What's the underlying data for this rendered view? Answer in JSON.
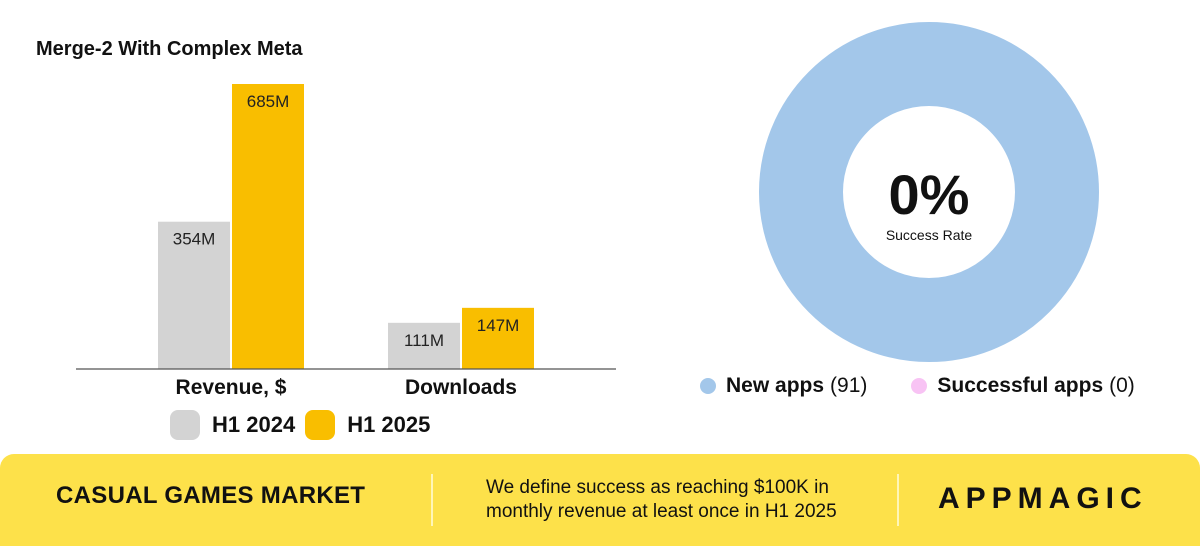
{
  "chart_data": [
    {
      "type": "bar",
      "title": "Merge-2 With Complex Meta",
      "categories": [
        "Revenue, $",
        "Downloads"
      ],
      "series": [
        {
          "name": "H1 2024",
          "values": [
            354,
            111
          ],
          "labels": [
            "354M",
            "111M"
          ],
          "color": "#d3d3d3"
        },
        {
          "name": "H1 2025",
          "values": [
            685,
            147
          ],
          "labels": [
            "685M",
            "147M"
          ],
          "color": "#f9be00"
        }
      ],
      "grid": false,
      "legend": "bottom"
    },
    {
      "type": "pie",
      "center_value": "0%",
      "center_label": "Success Rate",
      "slices": [
        {
          "name": "New apps",
          "count": "(91)",
          "value": 91,
          "color": "#a3c7ea"
        },
        {
          "name": "Successful apps",
          "count": "(0)",
          "value": 0,
          "color": "#f8c3f4"
        }
      ],
      "legend": "bottom"
    }
  ],
  "footer": {
    "market_label": "CASUAL GAMES MARKET",
    "definition_line1": "We define success as reaching $100K in",
    "definition_line2": "monthly revenue at least once in H1 2025",
    "brand": "APPMAGIC",
    "background_color": "#fde14a"
  }
}
